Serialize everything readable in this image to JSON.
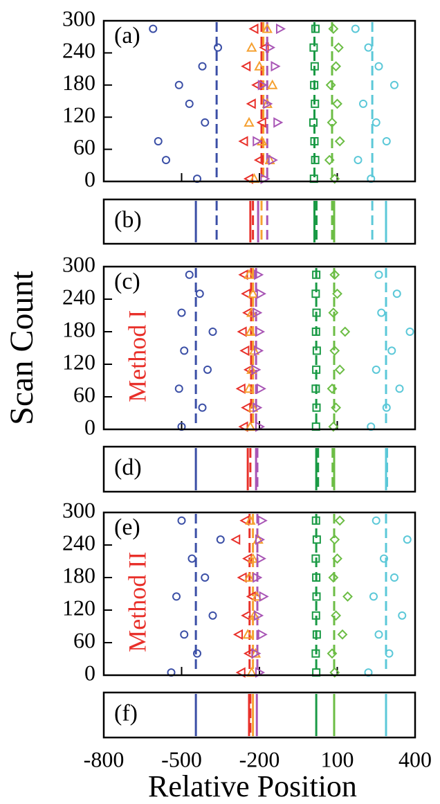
{
  "chart_data": [
    {
      "type": "scatter",
      "label": "(a)",
      "xlim": [
        -800,
        400
      ],
      "ylim": [
        0,
        300
      ],
      "yticks": [
        0,
        60,
        120,
        180,
        240,
        300
      ],
      "y": [
        5,
        40,
        75,
        110,
        145,
        180,
        215,
        250,
        285
      ],
      "series": [
        {
          "marker": "circle",
          "color": "#3b4fa6",
          "x": [
            -440,
            -560,
            -590,
            -410,
            -470,
            -510,
            -420,
            -360,
            -610
          ]
        },
        {
          "marker": "triangle-left",
          "color": "#e8302a",
          "x": [
            -240,
            -200,
            -260,
            -190,
            -230,
            -210,
            -250,
            -180,
            -220
          ]
        },
        {
          "marker": "triangle-up",
          "color": "#f5a030",
          "x": [
            -220,
            -160,
            -190,
            -240,
            -170,
            -150,
            -200,
            -230,
            -170
          ]
        },
        {
          "marker": "triangle-right",
          "color": "#a855b5",
          "x": [
            -180,
            -150,
            -210,
            -130,
            -170,
            -190,
            -140,
            -160,
            -120
          ]
        },
        {
          "marker": "square",
          "color": "#1a9a45",
          "x": [
            10,
            15,
            12,
            8,
            14,
            11,
            13,
            9,
            16
          ]
        },
        {
          "marker": "diamond",
          "color": "#6cbd45",
          "x": [
            90,
            70,
            110,
            80,
            100,
            75,
            95,
            105,
            85
          ]
        },
        {
          "marker": "circle",
          "color": "#5bc8d8",
          "x": [
            230,
            180,
            290,
            250,
            200,
            320,
            260,
            220,
            170
          ]
        }
      ],
      "lines": [
        {
          "x": -365,
          "color": "#3b4fa6",
          "dash": true
        },
        {
          "x": -192,
          "color": "#e8302a",
          "dash": true
        },
        {
          "x": -185,
          "color": "#f5a030",
          "dash": true
        },
        {
          "x": -170,
          "color": "#a855b5",
          "dash": true
        },
        {
          "x": 12,
          "color": "#1a9a45",
          "dash": true
        },
        {
          "x": 80,
          "color": "#6cbd45",
          "dash": true
        },
        {
          "x": 235,
          "color": "#5bc8d8",
          "dash": true
        }
      ]
    },
    {
      "type": "lines",
      "label": "(b)",
      "xlim": [
        -800,
        400
      ],
      "lines": [
        {
          "x": -445,
          "color": "#3b4fa6",
          "dash": false
        },
        {
          "x": -365,
          "color": "#3b4fa6",
          "dash": true
        },
        {
          "x": -235,
          "color": "#e8302a",
          "dash": false
        },
        {
          "x": -225,
          "color": "#e8302a",
          "dash": true
        },
        {
          "x": -192,
          "color": "#f5a030",
          "dash": true
        },
        {
          "x": -205,
          "color": "#a855b5",
          "dash": false
        },
        {
          "x": -170,
          "color": "#a855b5",
          "dash": true
        },
        {
          "x": 12,
          "color": "#1a9a45",
          "dash": false
        },
        {
          "x": 20,
          "color": "#1a9a45",
          "dash": true
        },
        {
          "x": 88,
          "color": "#6cbd45",
          "dash": false
        },
        {
          "x": 80,
          "color": "#6cbd45",
          "dash": true
        },
        {
          "x": 288,
          "color": "#5bc8d8",
          "dash": false
        },
        {
          "x": 235,
          "color": "#5bc8d8",
          "dash": true
        }
      ]
    },
    {
      "type": "scatter",
      "label": "(c)",
      "annotation": "Method I",
      "y_label": "Scan Count",
      "xlim": [
        -800,
        400
      ],
      "ylim": [
        0,
        300
      ],
      "yticks": [
        0,
        60,
        120,
        180,
        240,
        300
      ],
      "y": [
        5,
        40,
        75,
        110,
        145,
        180,
        215,
        250,
        285
      ],
      "series": [
        {
          "marker": "circle",
          "color": "#3b4fa6",
          "x": [
            -500,
            -420,
            -510,
            -400,
            -490,
            -380,
            -500,
            -430,
            -470
          ]
        },
        {
          "marker": "triangle-left",
          "color": "#e8302a",
          "x": [
            -260,
            -250,
            -270,
            -240,
            -255,
            -265,
            -245,
            -250,
            -260
          ]
        },
        {
          "marker": "triangle-up",
          "color": "#f5a030",
          "x": [
            -235,
            -225,
            -240,
            -230,
            -220,
            -235,
            -230,
            -225,
            -240
          ]
        },
        {
          "marker": "triangle-right",
          "color": "#a855b5",
          "x": [
            -200,
            -210,
            -195,
            -215,
            -205,
            -200,
            -210,
            -195,
            -205
          ]
        },
        {
          "marker": "square",
          "color": "#1a9a45",
          "x": [
            18,
            20,
            17,
            19,
            21,
            18,
            20,
            17,
            19
          ]
        },
        {
          "marker": "diamond",
          "color": "#6cbd45",
          "x": [
            85,
            95,
            80,
            110,
            90,
            130,
            85,
            100,
            90
          ]
        },
        {
          "marker": "circle",
          "color": "#5bc8d8",
          "x": [
            230,
            290,
            340,
            250,
            310,
            380,
            270,
            330,
            260
          ]
        }
      ],
      "lines": [
        {
          "x": -445,
          "color": "#3b4fa6",
          "dash": true
        },
        {
          "x": -232,
          "color": "#e8302a",
          "dash": true
        },
        {
          "x": -225,
          "color": "#f5a030",
          "dash": true
        },
        {
          "x": -213,
          "color": "#a855b5",
          "dash": true
        },
        {
          "x": 19,
          "color": "#1a9a45",
          "dash": true
        },
        {
          "x": 88,
          "color": "#6cbd45",
          "dash": true
        },
        {
          "x": 288,
          "color": "#5bc8d8",
          "dash": true
        }
      ]
    },
    {
      "type": "lines",
      "label": "(d)",
      "xlim": [
        -800,
        400
      ],
      "lines": [
        {
          "x": -445,
          "color": "#3b4fa6",
          "dash": false
        },
        {
          "x": -245,
          "color": "#e8302a",
          "dash": false
        },
        {
          "x": -235,
          "color": "#e8302a",
          "dash": true
        },
        {
          "x": -213,
          "color": "#a855b5",
          "dash": false
        },
        {
          "x": -208,
          "color": "#a855b5",
          "dash": true
        },
        {
          "x": 19,
          "color": "#1a9a45",
          "dash": false
        },
        {
          "x": 26,
          "color": "#1a9a45",
          "dash": true
        },
        {
          "x": 88,
          "color": "#6cbd45",
          "dash": false
        },
        {
          "x": 82,
          "color": "#6cbd45",
          "dash": true
        },
        {
          "x": 288,
          "color": "#5bc8d8",
          "dash": false
        },
        {
          "x": 292,
          "color": "#5bc8d8",
          "dash": true
        }
      ]
    },
    {
      "type": "scatter",
      "label": "(e)",
      "annotation": "Method II",
      "xlim": [
        -800,
        400
      ],
      "ylim": [
        0,
        300
      ],
      "yticks": [
        0,
        60,
        120,
        180,
        240,
        300
      ],
      "y": [
        5,
        40,
        75,
        110,
        145,
        180,
        215,
        250,
        285
      ],
      "series": [
        {
          "marker": "circle",
          "color": "#3b4fa6",
          "x": [
            -540,
            -440,
            -490,
            -380,
            -520,
            -410,
            -460,
            -350,
            -500
          ]
        },
        {
          "marker": "triangle-left",
          "color": "#e8302a",
          "x": [
            -270,
            -240,
            -280,
            -250,
            -230,
            -265,
            -245,
            -290,
            -255
          ]
        },
        {
          "marker": "triangle-up",
          "color": "#f5a030",
          "x": [
            -230,
            -215,
            -245,
            -220,
            -210,
            -240,
            -225,
            -205,
            -235
          ]
        },
        {
          "marker": "triangle-right",
          "color": "#a855b5",
          "x": [
            -200,
            -215,
            -190,
            -205,
            -185,
            -210,
            -195,
            -200,
            -190
          ]
        },
        {
          "marker": "square",
          "color": "#1a9a45",
          "x": [
            19,
            17,
            21,
            18,
            20,
            19,
            17,
            21,
            18
          ]
        },
        {
          "marker": "diamond",
          "color": "#6cbd45",
          "x": [
            90,
            80,
            120,
            95,
            140,
            85,
            100,
            90,
            110
          ]
        },
        {
          "marker": "circle",
          "color": "#5bc8d8",
          "x": [
            220,
            300,
            260,
            350,
            240,
            320,
            280,
            370,
            250
          ]
        }
      ],
      "lines": [
        {
          "x": -445,
          "color": "#3b4fa6",
          "dash": true
        },
        {
          "x": -238,
          "color": "#e8302a",
          "dash": true
        },
        {
          "x": -225,
          "color": "#f5a030",
          "dash": true
        },
        {
          "x": -208,
          "color": "#a855b5",
          "dash": true
        },
        {
          "x": 19,
          "color": "#1a9a45",
          "dash": true
        },
        {
          "x": 88,
          "color": "#6cbd45",
          "dash": true
        },
        {
          "x": 288,
          "color": "#5bc8d8",
          "dash": true
        }
      ]
    },
    {
      "type": "lines",
      "label": "(f)",
      "xlim": [
        -800,
        400
      ],
      "x_label": "Relative Position",
      "xticks": [
        -800,
        -500,
        -200,
        100,
        400
      ],
      "lines": [
        {
          "x": -445,
          "color": "#3b4fa6",
          "dash": false
        },
        {
          "x": -240,
          "color": "#e8302a",
          "dash": false
        },
        {
          "x": -235,
          "color": "#e8302a",
          "dash": true
        },
        {
          "x": -225,
          "color": "#f5a030",
          "dash": false
        },
        {
          "x": -210,
          "color": "#a855b5",
          "dash": false
        },
        {
          "x": 19,
          "color": "#1a9a45",
          "dash": false
        },
        {
          "x": 88,
          "color": "#6cbd45",
          "dash": false
        },
        {
          "x": 288,
          "color": "#5bc8d8",
          "dash": false
        }
      ]
    }
  ]
}
